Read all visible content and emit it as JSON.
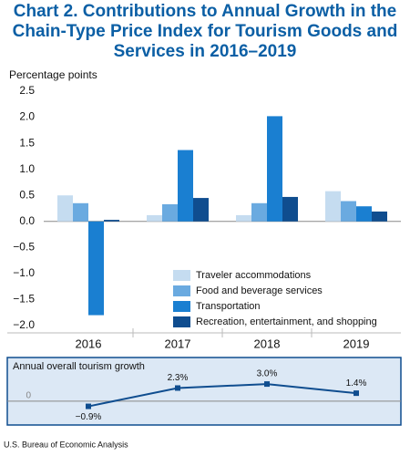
{
  "chart_data": [
    {
      "type": "bar",
      "title": "Chart 2. Contributions to Annual Growth in the Chain-Type Price Index for Tourism Goods and Services in 2016–2019",
      "y_label": "Percentage points",
      "categories": [
        "2016",
        "2017",
        "2018",
        "2019"
      ],
      "series": [
        {
          "name": "Traveler accommodations",
          "color": "#c5dcf0",
          "values": [
            0.5,
            0.12,
            0.12,
            0.58
          ]
        },
        {
          "name": "Food and beverage services",
          "color": "#6aaae0",
          "values": [
            0.35,
            0.33,
            0.35,
            0.39
          ]
        },
        {
          "name": "Transportation",
          "color": "#1a7fd1",
          "values": [
            -1.8,
            1.37,
            2.02,
            0.29
          ]
        },
        {
          "name": "Recreation, entertainment, and shopping",
          "color": "#0f4d8f",
          "values": [
            0.03,
            0.45,
            0.47,
            0.19
          ]
        }
      ],
      "ylim": [
        -2.0,
        2.5
      ],
      "yticks": [
        {
          "value": 2.5,
          "label": "2.5"
        },
        {
          "value": 2.0,
          "label": "2.0"
        },
        {
          "value": 1.5,
          "label": "1.5"
        },
        {
          "value": 1.0,
          "label": "1.0"
        },
        {
          "value": 0.5,
          "label": "0.5"
        },
        {
          "value": 0.0,
          "label": "0.0"
        },
        {
          "value": -0.5,
          "label": "−0.5"
        },
        {
          "value": -1.0,
          "label": "−1.0"
        },
        {
          "value": -1.5,
          "label": "−1.5"
        },
        {
          "value": -2.0,
          "label": "−2.0"
        }
      ],
      "grid": false,
      "legend": "lower-right"
    },
    {
      "type": "line",
      "title": "Annual overall tourism growth",
      "series": [
        {
          "color": "#0f4d8f",
          "values": [
            -0.9,
            2.3,
            3.0,
            1.4
          ],
          "value_labels": [
            "−0.9%",
            "2.3%",
            "3.0%",
            "1.4%"
          ]
        }
      ],
      "ylim": [
        -4,
        7
      ],
      "yticks": [
        0
      ]
    }
  ],
  "source": "U.S. Bureau of Economic Analysis"
}
